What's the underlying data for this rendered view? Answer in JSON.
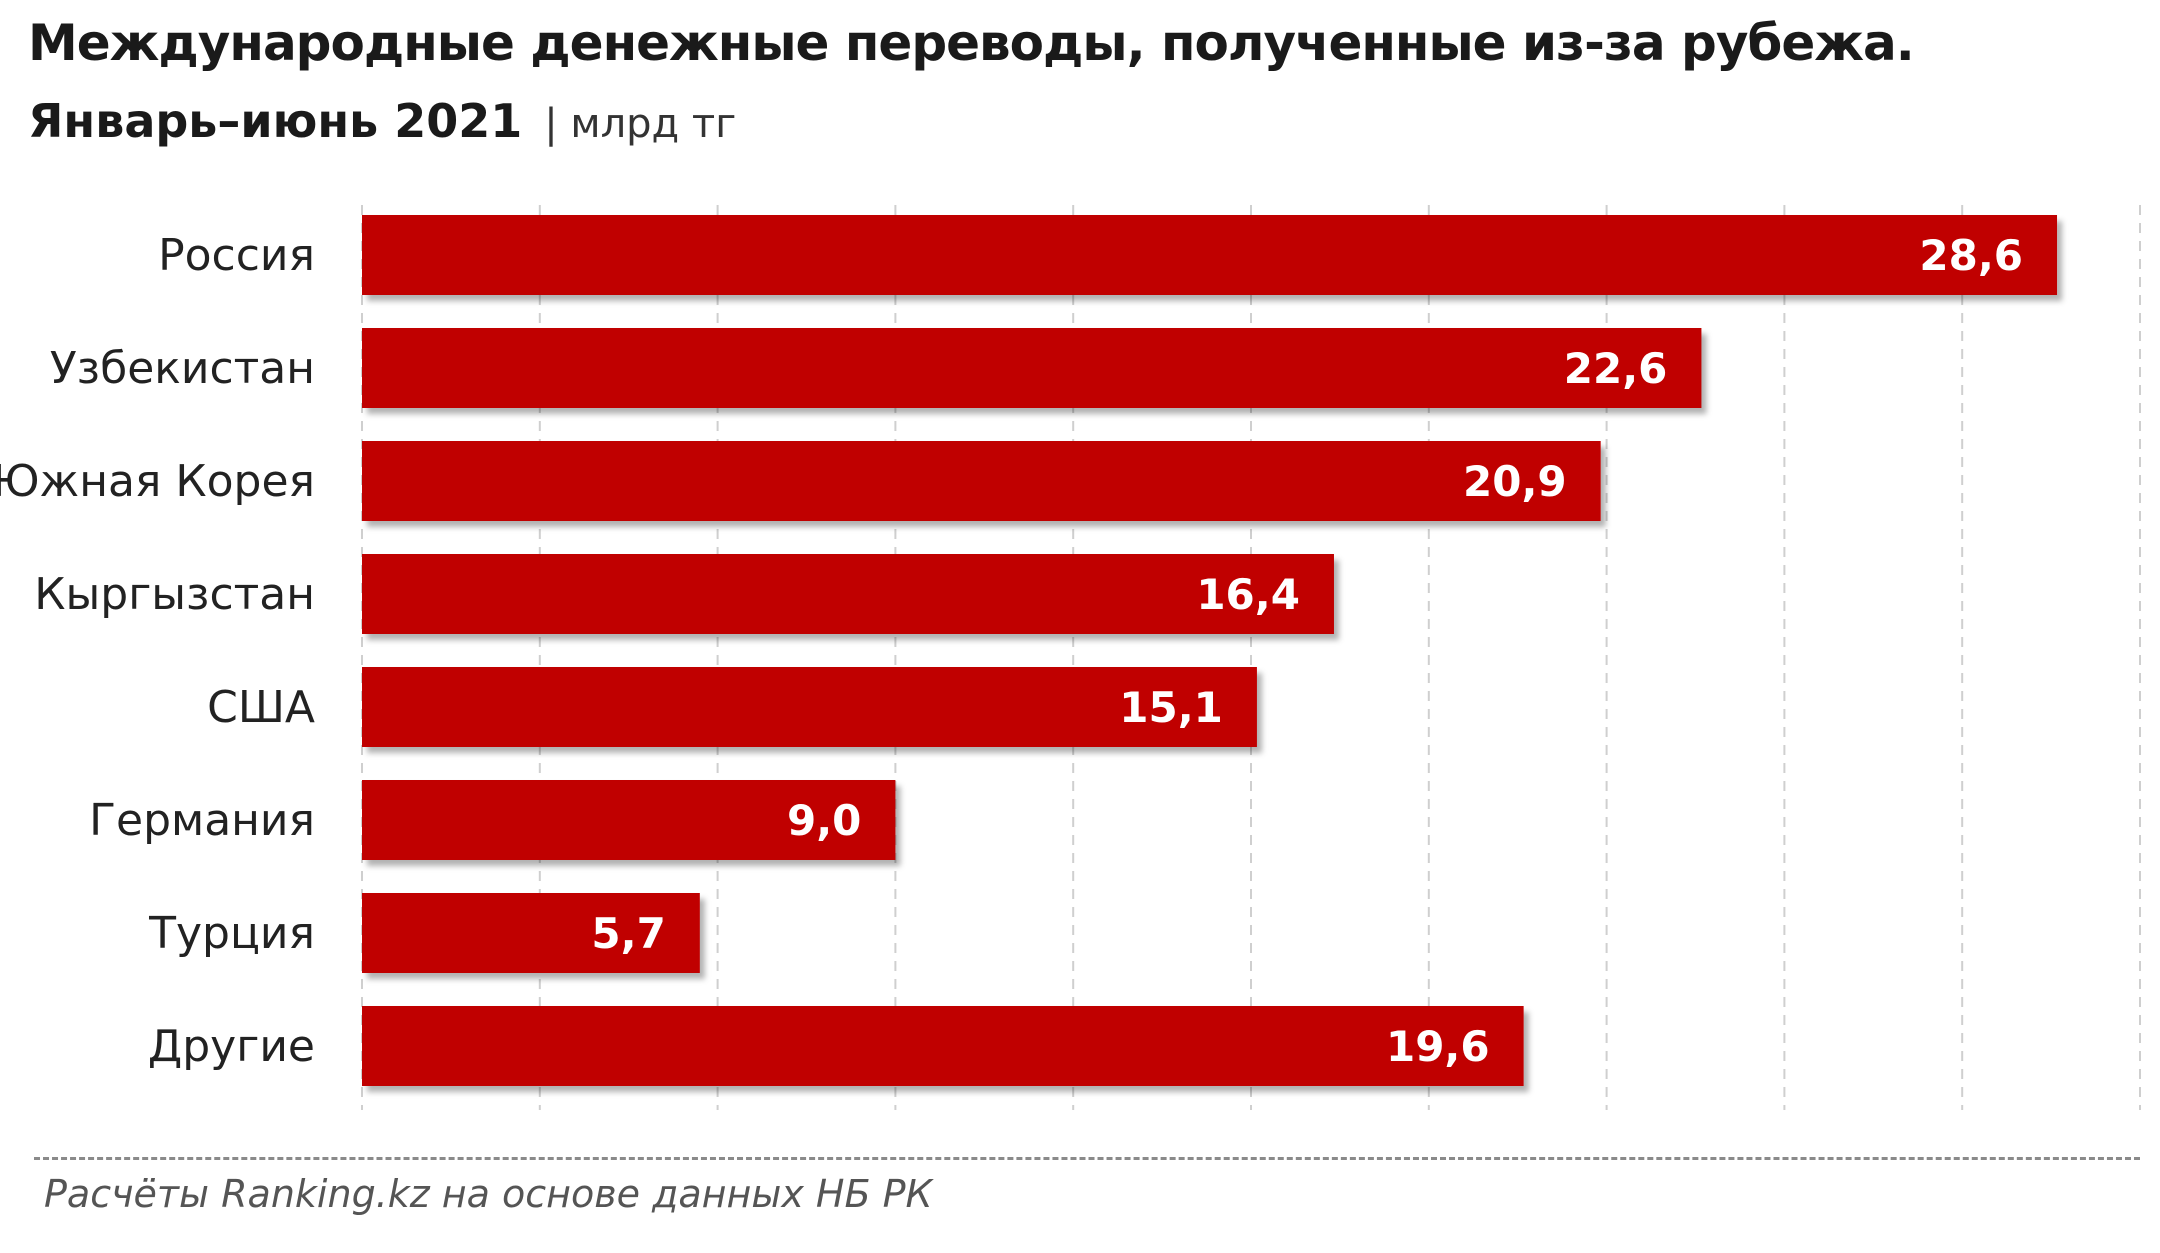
{
  "header": {
    "title": "Международные денежные переводы, полученные из-за рубежа.",
    "subtitle": "Январь–июнь 2021",
    "unit": "| млрд тг"
  },
  "chart_data": {
    "type": "bar",
    "orientation": "horizontal",
    "categories": [
      "Россия",
      "Узбекистан",
      "Южная Корея",
      "Кыргызстан",
      "США",
      "Германия",
      "Турция",
      "Другие"
    ],
    "values": [
      28.6,
      22.6,
      20.9,
      16.4,
      15.1,
      9.0,
      5.7,
      19.6
    ],
    "value_labels": [
      "28,6",
      "22,6",
      "20,9",
      "16,4",
      "15,1",
      "9,0",
      "5,7",
      "19,6"
    ],
    "xlim": [
      0,
      30
    ],
    "grid": true,
    "bar_color": "#c00000",
    "label_color": "#ffffff"
  },
  "footer": {
    "source": "Расчёты Ranking.kz на основе данных НБ РК"
  }
}
